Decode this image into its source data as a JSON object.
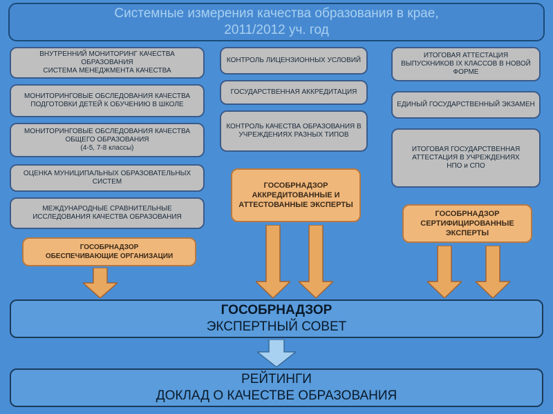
{
  "title": "Системные измерения качества образования в крае,\n2011/2012 уч. год",
  "col1": {
    "b1": "ВНУТРЕННИЙ МОНИТОРИНГ КАЧЕСТВА ОБРАЗОВАНИЯ\nСИСТЕМА МЕНЕДЖМЕНТА КАЧЕСТВА",
    "b2": "МОНИТОРИНГОВЫЕ  ОБСЛЕДОВАНИЯ КАЧЕСТВА ПОДГОТОВКИ ДЕТЕЙ К ОБУЧЕНИЮ В ШКОЛЕ",
    "b3": "МОНИТОРИНГОВЫЕ ОБСЛЕДОВАНИЯ КАЧЕСТВА ОБЩЕГО ОБРАЗОВАНИЯ\n(4-5, 7-8 классы)",
    "b4": "ОЦЕНКА  МУНИЦИПАЛЬНЫХ ОБРАЗОВАТЕЛЬНЫХ СИСТЕМ",
    "b5": "МЕЖДУНАРОДНЫЕ СРАВНИТЕЛЬНЫЕ ИССЛЕДОВАНИЯ КАЧЕСТВА ОБРАЗОВАНИЯ",
    "orange": "ГОСОБРНАДЗОР\nОБЕСПЕЧИВАЮЩИЕ ОРГАНИЗАЦИИ"
  },
  "col2": {
    "b1": "КОНТРОЛЬ ЛИЦЕНЗИОННЫХ УСЛОВИЙ",
    "b2": "ГОСУДАРСТВЕННАЯ АККРЕДИТАЦИЯ",
    "b3": "КОНТРОЛЬ КАЧЕСТВА ОБРАЗОВАНИЯ В УЧРЕЖДЕНИЯХ РАЗНЫХ ТИПОВ",
    "orange": "ГОСОБРНАДЗОР АККРЕДИТОВАННЫЕ И АТТЕСТОВАННЫЕ ЭКСПЕРТЫ"
  },
  "col3": {
    "b1": "ИТОГОВАЯ АТТЕСТАЦИЯ ВЫПУСКНИКОВ  IX КЛАССОВ В  НОВОЙ ФОРМЕ",
    "b2": "ЕДИНЫЙ ГОСУДАРСТВЕННЫЙ ЭКЗАМЕН",
    "b3": "ИТОГОВАЯ ГОСУДАРСТВЕННАЯ АТТЕСТАЦИЯ В УЧРЕЖДЕНИЯХ\nНПО и СПО",
    "orange": "ГОСОБРНАДЗОР СЕРТИФИЦИРОВАННЫЕ ЭКСПЕРТЫ"
  },
  "council": {
    "l1": "ГОСОБРНАДЗОР",
    "l2": "ЭКСПЕРТНЫЙ СОВЕТ"
  },
  "report": {
    "l1": "РЕЙТИНГИ",
    "l2": "ДОКЛАД  О КАЧЕСТВЕ  ОБРАЗОВАНИЯ"
  },
  "style": {
    "type": "flowchart",
    "background": "#4a8fd6",
    "title_bg": "#4789d1",
    "title_text": "#a8d0f0",
    "gray_bg": "#bfbfbf",
    "gray_border": "#3a5a8a",
    "orange_bg": "#f0b77a",
    "orange_border": "#b87840",
    "blue_bg": "#5a9cdc",
    "blue_border": "#1a3a5a",
    "arrow_fill": "#e8a860",
    "arrow_stroke": "#a06030",
    "arrow_blue_fill": "#a8d0f0",
    "arrow_blue_stroke": "#3a6a9a",
    "border_radius": 10,
    "gray_fontsize": 10,
    "orange_fontsize": 10,
    "title_fontsize": 19
  }
}
